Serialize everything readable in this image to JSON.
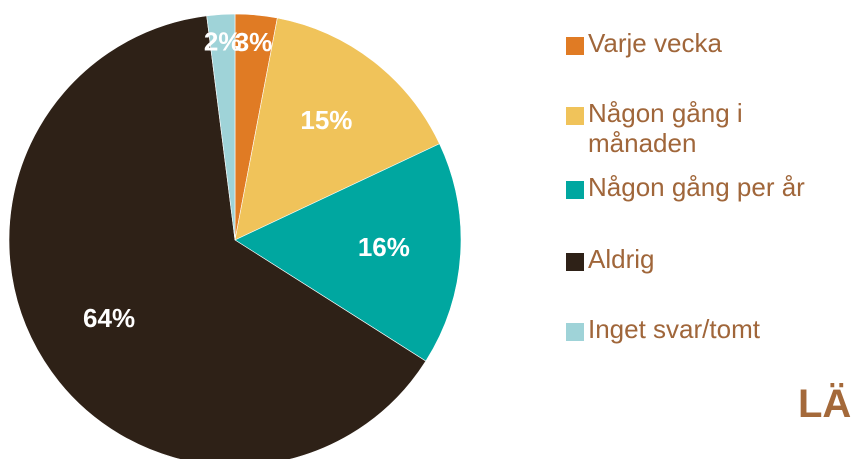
{
  "chart_data": {
    "type": "pie",
    "categories": [
      "Varje vecka",
      "Någon gång i månaden",
      "Någon gång per år",
      "Aldrig",
      "Inget svar/tomt"
    ],
    "values": [
      3,
      15,
      16,
      64,
      2
    ],
    "value_labels": [
      "3%",
      "15%",
      "16%",
      "64%",
      "2%"
    ],
    "colors": [
      "#e07b24",
      "#f0c35a",
      "#00a7a0",
      "#2e2117",
      "#9fd3d8"
    ],
    "legend": "right",
    "annotation": "LÄ"
  }
}
